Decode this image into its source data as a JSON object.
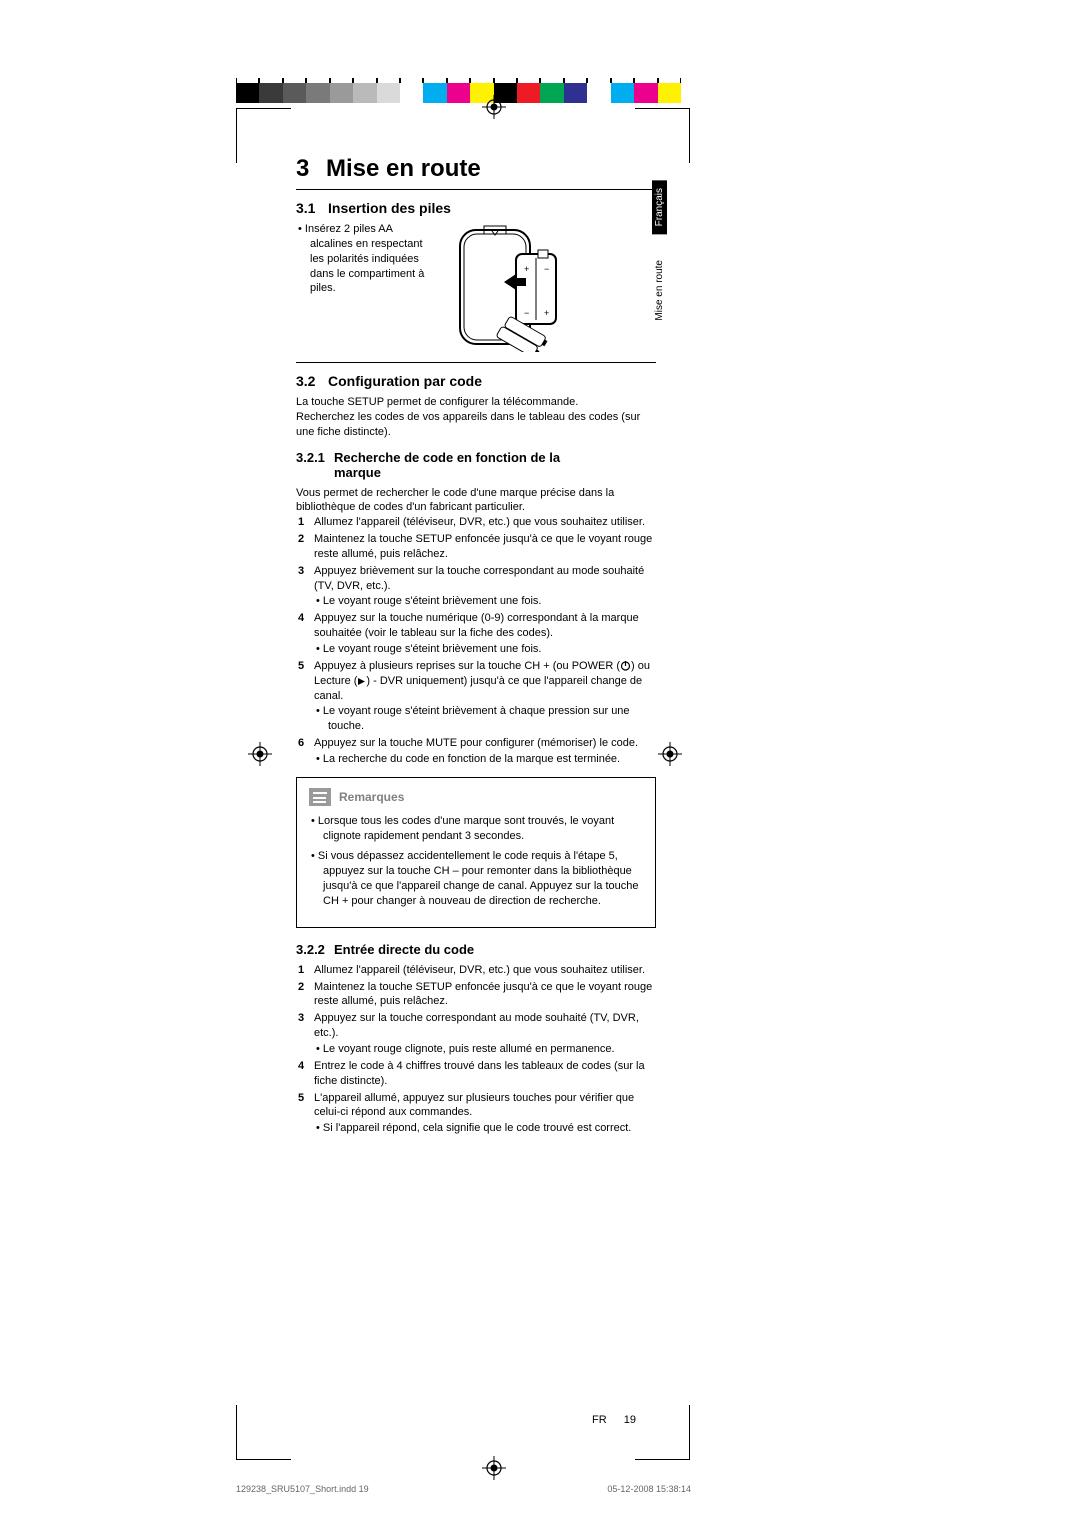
{
  "colorbar": [
    "#000000",
    "#3a3a3a",
    "#5a5a5a",
    "#7a7a7a",
    "#9a9a9a",
    "#bababa",
    "#dadada",
    "#ffffff",
    "#00aeef",
    "#ec008c",
    "#fff200",
    "#000000",
    "#ed1c24",
    "#00a651",
    "#2e3192",
    "#ffffff",
    "#00aeef",
    "#ec008c",
    "#fff200"
  ],
  "chapter": {
    "num": "3",
    "title": "Mise en route"
  },
  "s31": {
    "num": "3.1",
    "title": "Insertion des piles",
    "bullet": "Insérez 2 piles AA alcalines en respectant les polarités indiquées dans le compartiment à piles."
  },
  "s32": {
    "num": "3.2",
    "title": "Configuration par code",
    "intro1": "La touche SETUP permet de configurer la télécommande.",
    "intro2": "Recherchez les codes de vos appareils dans le tableau des codes (sur une fiche distincte)."
  },
  "s321": {
    "num": "3.2.1",
    "title": "Recherche de code en fonction de la",
    "title2": "marque",
    "intro": "Vous permet de rechercher le code d'une marque précise dans la bibliothèque de codes d'un fabricant particulier.",
    "step1": "Allumez l'appareil (téléviseur, DVR, etc.) que vous souhaitez utiliser.",
    "step2": "Maintenez la touche SETUP enfoncée jusqu'à ce que le voyant rouge reste allumé, puis relâchez.",
    "step3": "Appuyez brièvement sur la touche correspondant au mode souhaité (TV, DVR, etc.).",
    "step3sub": "Le voyant rouge s'éteint brièvement une fois.",
    "step4": "Appuyez sur la touche numérique (0-9) correspondant à la marque souhaitée (voir le tableau sur la fiche des codes).",
    "step4sub": "Le voyant rouge s'éteint brièvement une fois.",
    "step5a": "Appuyez à plusieurs reprises sur la touche CH + (ou POWER (",
    "step5b": ") ou Lecture (",
    "step5c": ") - DVR uniquement) jusqu'à ce que l'appareil change de canal.",
    "step5sub": "Le voyant rouge s'éteint brièvement à chaque pression sur une touche.",
    "step6": "Appuyez sur la touche MUTE pour configurer (mémoriser) le code.",
    "step6sub": "La recherche du code en fonction de la marque est terminée."
  },
  "notes": {
    "title": "Remarques",
    "n1": "Lorsque tous les codes d'une marque sont trouvés, le voyant clignote rapidement pendant 3 secondes.",
    "n2": "Si vous dépassez accidentellement le code requis à l'étape 5, appuyez sur la touche CH – pour remonter dans la bibliothèque jusqu'à ce que l'appareil change de canal. Appuyez sur la touche CH + pour changer à nouveau de direction de recherche."
  },
  "s322": {
    "num": "3.2.2",
    "title": "Entrée directe du code",
    "step1": "Allumez l'appareil (téléviseur, DVR, etc.) que vous souhaitez utiliser.",
    "step2": "Maintenez la touche SETUP enfoncée jusqu'à ce que le voyant rouge reste allumé, puis relâchez.",
    "step3": "Appuyez sur la touche correspondant au mode souhaité (TV, DVR, etc.).",
    "step3sub": "Le voyant rouge clignote, puis reste allumé en permanence.",
    "step4": "Entrez le code à 4 chiffres trouvé dans les tableaux de codes (sur la fiche distincte).",
    "step5": "L'appareil allumé, appuyez sur plusieurs touches pour vérifier que celui-ci répond aux commandes.",
    "step5sub": "Si l'appareil répond, cela signifie que le code trouvé est correct."
  },
  "tabs": {
    "lang": "Français",
    "section": "Mise en route"
  },
  "footer": {
    "lang": "FR",
    "page": "19"
  },
  "printfooter": {
    "left": "129238_SRU5107_Short.indd   19",
    "right": "05-12-2008   15:38:14"
  }
}
